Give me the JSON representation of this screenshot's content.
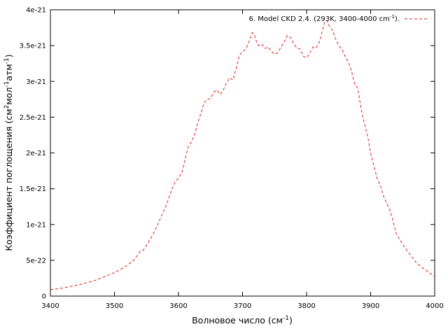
{
  "chart_data": {
    "type": "line",
    "title": "",
    "xlabel": {
      "main": "Волновое число (см",
      "sup": "-1",
      "tail": ")"
    },
    "ylabel": {
      "parts": [
        "Коэффициент поглощения (см",
        "2",
        "мол",
        "-1",
        "атм",
        "-1",
        ")"
      ]
    },
    "xlim": [
      3400,
      4000
    ],
    "ylim": [
      0,
      4e-21
    ],
    "xticks": [
      "3400",
      "3500",
      "3600",
      "3700",
      "3800",
      "3900",
      "4000"
    ],
    "yticks": [
      "0",
      "5e-22",
      "1e-21",
      "1.5e-21",
      "2e-21",
      "2.5e-21",
      "3e-21",
      "3.5e-21",
      "4e-21"
    ],
    "grid": false,
    "legend_position": "top-right",
    "series": [
      {
        "name": "6. Model CKD 2.4. (293K, 3400-4000 cm",
        "name_sup": "-1",
        "name_tail": ").",
        "color": "#e41a1c",
        "style": "dashed",
        "x": [
          3400,
          3410,
          3420,
          3430,
          3440,
          3450,
          3460,
          3470,
          3480,
          3490,
          3500,
          3510,
          3520,
          3530,
          3540,
          3545,
          3550,
          3555,
          3560,
          3565,
          3570,
          3575,
          3580,
          3585,
          3590,
          3595,
          3600,
          3605,
          3610,
          3615,
          3620,
          3625,
          3630,
          3635,
          3640,
          3645,
          3650,
          3655,
          3660,
          3665,
          3670,
          3675,
          3680,
          3685,
          3690,
          3695,
          3700,
          3705,
          3710,
          3715,
          3718,
          3722,
          3725,
          3730,
          3735,
          3740,
          3745,
          3750,
          3755,
          3760,
          3765,
          3770,
          3773,
          3776,
          3780,
          3785,
          3790,
          3795,
          3800,
          3805,
          3810,
          3815,
          3820,
          3825,
          3828,
          3832,
          3835,
          3840,
          3845,
          3850,
          3855,
          3860,
          3865,
          3870,
          3875,
          3880,
          3885,
          3890,
          3895,
          3900,
          3905,
          3910,
          3915,
          3920,
          3925,
          3930,
          3935,
          3940,
          3945,
          3950,
          3960,
          3970,
          3980,
          3990,
          4000
        ],
        "y": [
          9e-23,
          1e-22,
          1.15e-22,
          1.3e-22,
          1.5e-22,
          1.7e-22,
          1.95e-22,
          2.2e-22,
          2.55e-22,
          2.9e-22,
          3.3e-22,
          3.75e-22,
          4.3e-22,
          5e-22,
          6.2e-22,
          6.4e-22,
          7.1e-22,
          7.8e-22,
          8.6e-22,
          9.5e-22,
          1.05e-21,
          1.15e-21,
          1.25e-21,
          1.37e-21,
          1.5e-21,
          1.6e-21,
          1.65e-21,
          1.72e-21,
          1.9e-21,
          2.08e-21,
          2.15e-21,
          2.25e-21,
          2.42e-21,
          2.55e-21,
          2.7e-21,
          2.75e-21,
          2.76e-21,
          2.85e-21,
          2.88e-21,
          2.82e-21,
          2.88e-21,
          2.98e-21,
          3.05e-21,
          3.02e-21,
          3.18e-21,
          3.36e-21,
          3.42e-21,
          3.45e-21,
          3.55e-21,
          3.68e-21,
          3.66e-21,
          3.55e-21,
          3.5e-21,
          3.52e-21,
          3.46e-21,
          3.48e-21,
          3.42e-21,
          3.38e-21,
          3.4e-21,
          3.48e-21,
          3.55e-21,
          3.64e-21,
          3.63e-21,
          3.6e-21,
          3.52e-21,
          3.47e-21,
          3.45e-21,
          3.35e-21,
          3.33e-21,
          3.4e-21,
          3.48e-21,
          3.47e-21,
          3.55e-21,
          3.72e-21,
          3.83e-21,
          3.85e-21,
          3.78e-21,
          3.72e-21,
          3.6e-21,
          3.5e-21,
          3.45e-21,
          3.35e-21,
          3.28e-21,
          3.15e-21,
          2.96e-21,
          2.9e-21,
          2.62e-21,
          2.42e-21,
          2.25e-21,
          2e-21,
          1.82e-21,
          1.65e-21,
          1.55e-21,
          1.4e-21,
          1.3e-21,
          1.2e-21,
          1.05e-21,
          8.7e-22,
          8e-22,
          7.2e-22,
          6e-22,
          4.8e-22,
          4e-22,
          3.4e-22,
          2.7e-22
        ]
      }
    ]
  }
}
